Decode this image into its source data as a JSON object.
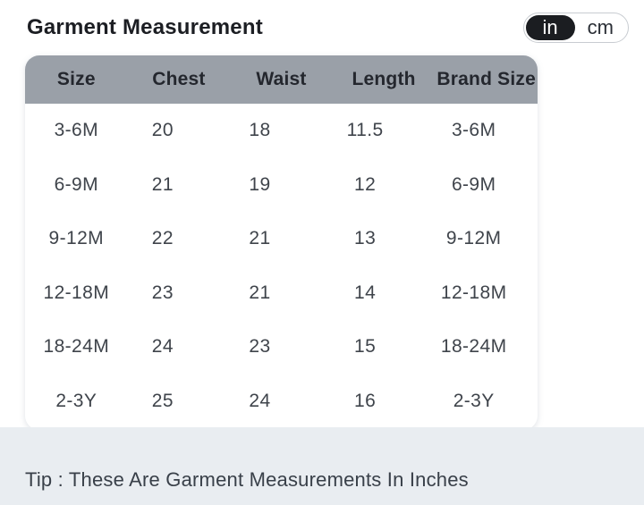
{
  "header": {
    "title": "Garment Measurement",
    "unit_toggle": {
      "options": [
        "in",
        "cm"
      ],
      "selected": "in"
    }
  },
  "table": {
    "headers": [
      "Size",
      "Chest",
      "Waist",
      "Length",
      "Brand Size"
    ],
    "rows": [
      [
        "3-6M",
        "20",
        "18",
        "11.5",
        "3-6M"
      ],
      [
        "6-9M",
        "21",
        "19",
        "12",
        "6-9M"
      ],
      [
        "9-12M",
        "22",
        "21",
        "13",
        "9-12M"
      ],
      [
        "12-18M",
        "23",
        "21",
        "14",
        "12-18M"
      ],
      [
        "18-24M",
        "24",
        "23",
        "15",
        "18-24M"
      ],
      [
        "2-3Y",
        "25",
        "24",
        "16",
        "2-3Y"
      ]
    ]
  },
  "footer": {
    "tip": "Tip : These Are Garment Measurements In Inches"
  },
  "colors": {
    "table_header_bg": "#9aa0a8",
    "toggle_active_bg": "#1b1d21",
    "toggle_active_text": "#ffffff",
    "tip_band_bg": "#e9edf1",
    "body_text": "#3f444b",
    "title_text": "#1c1e23"
  }
}
